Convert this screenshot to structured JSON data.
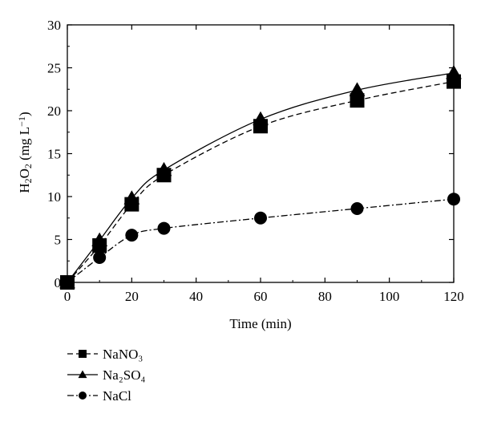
{
  "chart_data": {
    "type": "line",
    "xlabel": "Time (min)",
    "ylabel_parts": [
      "H",
      "2",
      "O",
      "2",
      " (mg L",
      "−1",
      ")"
    ],
    "xlim": [
      0,
      120
    ],
    "ylim": [
      0,
      30
    ],
    "x_ticks": [
      0,
      20,
      40,
      60,
      80,
      100,
      120
    ],
    "y_ticks": [
      0,
      5,
      10,
      15,
      20,
      25,
      30
    ],
    "grid": false,
    "legend_position": "bottom-left, below plot",
    "series": [
      {
        "name": "NaNO₃",
        "marker": "square",
        "line_style": "dashed",
        "x": [
          0,
          10,
          20,
          30,
          60,
          90,
          120
        ],
        "y": [
          0,
          4.3,
          9.1,
          12.5,
          18.2,
          21.2,
          23.4
        ]
      },
      {
        "name": "Na₂SO₄",
        "marker": "triangle",
        "line_style": "solid",
        "x": [
          0,
          10,
          20,
          30,
          60,
          90,
          120
        ],
        "y": [
          0,
          4.9,
          9.8,
          13.1,
          19.0,
          22.4,
          24.4
        ]
      },
      {
        "name": "NaCl",
        "marker": "circle",
        "line_style": "dash-dot",
        "x": [
          0,
          10,
          20,
          30,
          60,
          90,
          120
        ],
        "y": [
          0,
          2.9,
          5.5,
          6.3,
          7.5,
          8.6,
          9.7
        ]
      }
    ]
  }
}
